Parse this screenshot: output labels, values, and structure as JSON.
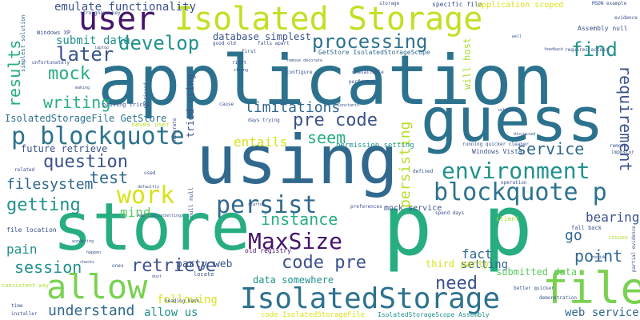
{
  "palette": {
    "purple": "#46136a",
    "indigo": "#3b528b",
    "blue": "#2c728e",
    "teal": "#21918c",
    "green": "#27ad81",
    "lime": "#5ec962",
    "yellowgreen": "#addc30",
    "yellow": "#d8e219",
    "background": "#ffffff"
  },
  "words": [
    {
      "text": "application",
      "color": "#2c728e"
    },
    {
      "text": "guess",
      "color": "#2c728e"
    },
    {
      "text": "using",
      "color": "#31688e"
    },
    {
      "text": "store",
      "color": "#27ad81"
    },
    {
      "text": "p p",
      "color": "#27ad81"
    },
    {
      "text": "Isolated Storage",
      "color": "#c2df23"
    },
    {
      "text": "user",
      "color": "#46136a"
    },
    {
      "text": "file",
      "color": "#7ad151"
    },
    {
      "text": "allow",
      "color": "#7ad151"
    },
    {
      "text": "IsolatedStorage",
      "color": "#2c728e"
    },
    {
      "text": "blockquote p",
      "color": "#2c728e"
    },
    {
      "text": "p blockquote",
      "color": "#2c728e"
    },
    {
      "text": "persist",
      "color": "#31688e"
    },
    {
      "text": "environment",
      "color": "#21918c"
    },
    {
      "text": "MaxSize",
      "color": "#46136a"
    },
    {
      "text": "work",
      "color": "#d8e219"
    },
    {
      "text": "processing",
      "color": "#2c728e"
    },
    {
      "text": "develop",
      "color": "#21918c"
    },
    {
      "text": "later",
      "color": "#3b528b"
    },
    {
      "text": "mock",
      "color": "#27ad81"
    },
    {
      "text": "results",
      "color": "#27ad81"
    },
    {
      "text": "writing",
      "color": "#27ad81"
    },
    {
      "text": "find",
      "color": "#21918c"
    },
    {
      "text": "requirement",
      "color": "#3b528b"
    },
    {
      "text": "pre code",
      "color": "#3b528b"
    },
    {
      "text": "seem",
      "color": "#27ad81"
    },
    {
      "text": "question",
      "color": "#3b528b"
    },
    {
      "text": "test",
      "color": "#31688e"
    },
    {
      "text": "code pre",
      "color": "#3b528b"
    },
    {
      "text": "retrieve",
      "color": "#3b528b"
    },
    {
      "text": "instance",
      "color": "#27ad81"
    },
    {
      "text": "session",
      "color": "#21918c"
    },
    {
      "text": "getting",
      "color": "#21918c"
    },
    {
      "text": "filesystem",
      "color": "#31688e"
    },
    {
      "text": "point",
      "color": "#31688e"
    },
    {
      "text": "service",
      "color": "#31688e"
    },
    {
      "text": "need",
      "color": "#3b528b"
    },
    {
      "text": "understand",
      "color": "#31688e"
    },
    {
      "text": "web service",
      "color": "#31688e"
    },
    {
      "text": "persisting",
      "color": "#b5de2b"
    },
    {
      "text": "limitations",
      "color": "#31688e"
    },
    {
      "text": "emulate functionality",
      "color": "#3b528b"
    },
    {
      "text": "submit data",
      "color": "#21918c"
    },
    {
      "text": "database simplest",
      "color": "#3b528b"
    },
    {
      "text": "IsolatedStorageFile GetStore",
      "color": "#2c728e"
    },
    {
      "text": "future retrieve",
      "color": "#3b528b"
    },
    {
      "text": "entails",
      "color": "#d8e219"
    },
    {
      "text": "mind",
      "color": "#5ec962"
    },
    {
      "text": "pain",
      "color": "#21918c"
    },
    {
      "text": "fact",
      "color": "#31688e"
    },
    {
      "text": "bearing",
      "color": "#3b528b"
    },
    {
      "text": "go",
      "color": "#31688e"
    },
    {
      "text": "setting",
      "color": "#31688e"
    },
    {
      "text": "following",
      "color": "#d8e219"
    },
    {
      "text": "allow us",
      "color": "#21918c"
    },
    {
      "text": "third party",
      "color": "#d8e219"
    },
    {
      "text": "submitted data",
      "color": "#5ec962"
    },
    {
      "text": "party web",
      "color": "#3b528b"
    },
    {
      "text": "data somewhere",
      "color": "#21918c"
    },
    {
      "text": "will host",
      "color": "#addc30"
    },
    {
      "text": "tried using",
      "color": "#3b528b"
    },
    {
      "text": "mock service",
      "color": "#3b528b"
    },
    {
      "text": "permission setting",
      "color": "#21918c"
    },
    {
      "text": "Windows Vista",
      "color": "#3b528b"
    },
    {
      "text": "Windows XP",
      "color": "#3b528b"
    },
    {
      "text": "simplest solution",
      "color": "#31688e"
    },
    {
      "text": "specific file",
      "color": "#3b528b"
    },
    {
      "text": "application scoped",
      "color": "#d8e219"
    },
    {
      "text": "Assembly null",
      "color": "#3b528b"
    },
    {
      "text": "GetStore IsolatedStorageScope",
      "color": "#31688e"
    },
    {
      "text": "code IsolatedStorageFile",
      "color": "#d8e219"
    },
    {
      "text": "IsolatedStorageScope Assembly",
      "color": "#21918c"
    },
    {
      "text": "file location",
      "color": "#3b528b"
    },
    {
      "text": "old registry",
      "color": "#46136a"
    },
    {
      "text": "fall back",
      "color": "#3b528b"
    },
    {
      "text": "saves user",
      "color": "#b5de2b"
    },
    {
      "text": "proving tricky",
      "color": "#3b528b"
    },
    {
      "text": "spend days",
      "color": "#3b528b"
    },
    {
      "text": "days trying",
      "color": "#3b528b"
    },
    {
      "text": "null null",
      "color": "#3b528b"
    },
    {
      "text": "MSDN example",
      "color": "#3b528b"
    },
    {
      "text": "evidence",
      "color": "#3b528b"
    },
    {
      "text": "requires access",
      "color": "#3b528b"
    },
    {
      "text": "client",
      "color": "#addc30"
    },
    {
      "text": "issues",
      "color": "#addc30"
    },
    {
      "text": "heading back",
      "color": "#3b528b"
    },
    {
      "text": "strongname key",
      "color": "#3b528b"
    },
    {
      "text": "running quicker cleaner",
      "color": "#3b528b"
    },
    {
      "text": "preferences",
      "color": "#3b528b"
    },
    {
      "text": "operation",
      "color": "#3b528b"
    },
    {
      "text": "locate",
      "color": "#3b528b"
    },
    {
      "text": "storage",
      "color": "#3b528b"
    },
    {
      "text": "configure",
      "color": "#3b528b"
    },
    {
      "text": "unfortunately",
      "color": "#3b528b"
    },
    {
      "text": "performed",
      "color": "#3b528b"
    },
    {
      "text": "defined",
      "color": "#3b528b"
    },
    {
      "text": "related",
      "color": "#3b528b"
    },
    {
      "text": "installer",
      "color": "#3b528b"
    },
    {
      "text": "consistent way",
      "color": "#addc30"
    },
    {
      "text": "time",
      "color": "#3b528b"
    },
    {
      "text": "good old",
      "color": "#3b528b"
    },
    {
      "text": "falls apart",
      "color": "#3b528b"
    },
    {
      "text": "remove",
      "color": "#3b528b"
    },
    {
      "text": "impostor",
      "color": "#3b528b"
    },
    {
      "text": "partial evidence",
      "color": "#3b528b"
    },
    {
      "text": "demonstration",
      "color": "#3b528b"
    },
    {
      "text": "better quicker",
      "color": "#3b528b"
    },
    {
      "text": "ApplicationSettings",
      "color": "#3b528b"
    },
    {
      "text": "used",
      "color": "#3b528b"
    },
    {
      "text": "first",
      "color": "#3b528b"
    },
    {
      "text": "enumerate",
      "color": "#3b528b"
    },
    {
      "text": "happen",
      "color": "#3b528b"
    },
    {
      "text": "checks",
      "color": "#3b528b"
    },
    {
      "text": "ones",
      "color": "#3b528b"
    },
    {
      "text": "laptop",
      "color": "#3b528b"
    },
    {
      "text": "making",
      "color": "#3b528b"
    },
    {
      "text": "right",
      "color": "#3b528b"
    },
    {
      "text": "strong",
      "color": "#3b528b"
    },
    {
      "text": "Constants",
      "color": "#3b528b"
    },
    {
      "text": "cause",
      "color": "#3b528b"
    },
    {
      "text": "startup",
      "color": "#3b528b"
    },
    {
      "text": "feedback",
      "color": "#3b528b"
    },
    {
      "text": "defaultly",
      "color": "#3b528b"
    },
    {
      "text": "reside",
      "color": "#3b528b"
    },
    {
      "text": "dust",
      "color": "#3b528b"
    },
    {
      "text": "well",
      "color": "#3b528b"
    },
    {
      "text": "wondering",
      "color": "#3b528b"
    },
    {
      "text": "discussed",
      "color": "#3b528b"
    },
    {
      "text": "remove decorate",
      "color": "#3b528b"
    },
    {
      "text": "unavailable",
      "color": "#3b528b"
    },
    {
      "text": "retrieved",
      "color": "#3b528b"
    },
    {
      "text": "selected",
      "color": "#3b528b"
    }
  ]
}
